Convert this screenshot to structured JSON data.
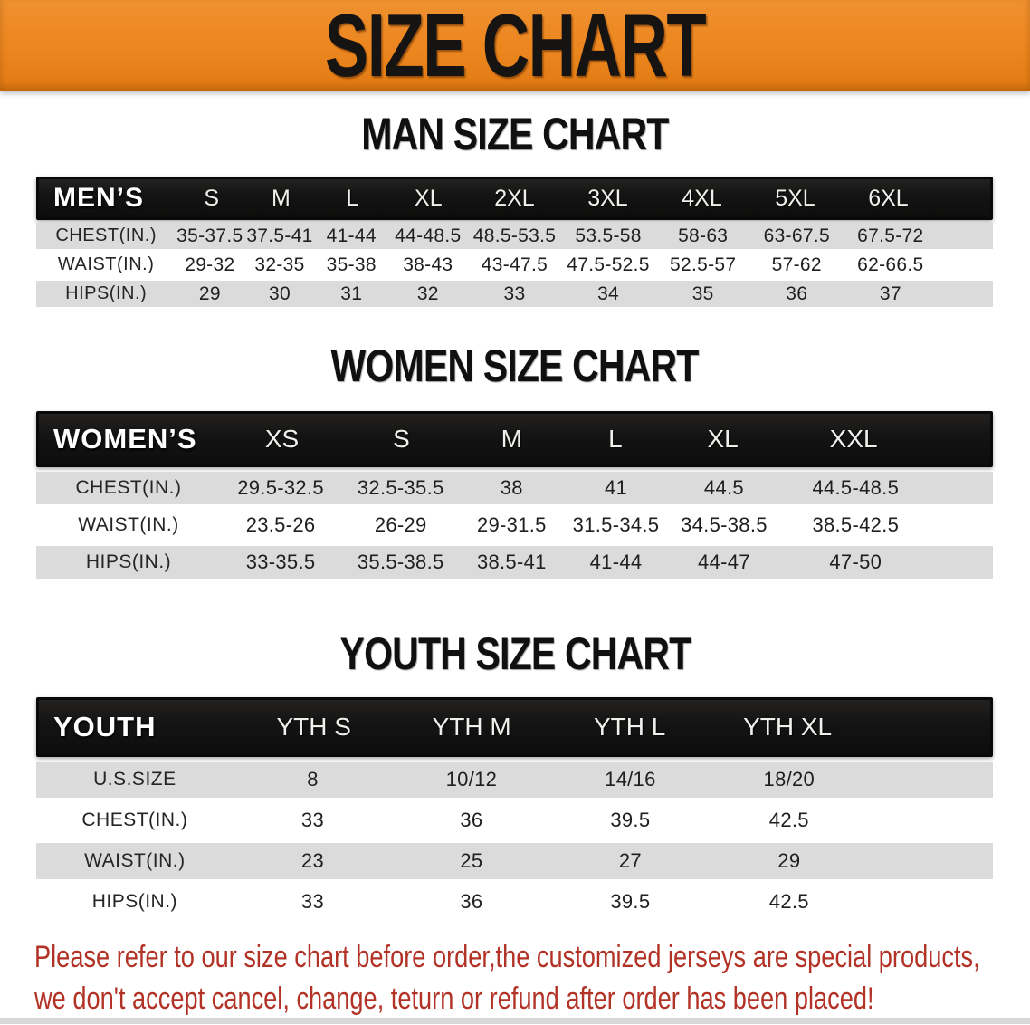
{
  "banner": {
    "title": "SIZE CHART"
  },
  "colors": {
    "banner_orange": "#EC861E",
    "table_header_black": "#141414",
    "row_gray": "#DBDBDB",
    "disclaimer_red": "#B23226"
  },
  "sections": {
    "men": {
      "heading": "MAN SIZE CHART",
      "table_label": "MEN’S",
      "sizes": [
        "S",
        "M",
        "L",
        "XL",
        "2XL",
        "3XL",
        "4XL",
        "5XL",
        "6XL"
      ],
      "rows": [
        {
          "label": "CHEST(IN.)",
          "values": [
            "35-37.5",
            "37.5-41",
            "41-44",
            "44-48.5",
            "48.5-53.5",
            "53.5-58",
            "58-63",
            "63-67.5",
            "67.5-72"
          ]
        },
        {
          "label": "WAIST(IN.)",
          "values": [
            "29-32",
            "32-35",
            "35-38",
            "38-43",
            "43-47.5",
            "47.5-52.5",
            "52.5-57",
            "57-62",
            "62-66.5"
          ]
        },
        {
          "label": "HIPS(IN.)",
          "values": [
            "29",
            "30",
            "31",
            "32",
            "33",
            "34",
            "35",
            "36",
            "37"
          ]
        }
      ]
    },
    "women": {
      "heading": "WOMEN SIZE CHART",
      "table_label": "WOMEN’S",
      "sizes": [
        "XS",
        "S",
        "M",
        "L",
        "XL",
        "XXL"
      ],
      "rows": [
        {
          "label": "CHEST(IN.)",
          "values": [
            "29.5-32.5",
            "32.5-35.5",
            "38",
            "41",
            "44.5",
            "44.5-48.5"
          ]
        },
        {
          "label": "WAIST(IN.)",
          "values": [
            "23.5-26",
            "26-29",
            "29-31.5",
            "31.5-34.5",
            "34.5-38.5",
            "38.5-42.5"
          ]
        },
        {
          "label": "HIPS(IN.)",
          "values": [
            "33-35.5",
            "35.5-38.5",
            "38.5-41",
            "41-44",
            "44-47",
            "47-50"
          ]
        }
      ]
    },
    "youth": {
      "heading": "YOUTH SIZE CHART",
      "table_label": "YOUTH",
      "sizes": [
        "YTH S",
        "YTH M",
        "YTH L",
        "YTH XL"
      ],
      "rows": [
        {
          "label": "U.S.SIZE",
          "values": [
            "8",
            "10/12",
            "14/16",
            "18/20"
          ]
        },
        {
          "label": "CHEST(IN.)",
          "values": [
            "33",
            "36",
            "39.5",
            "42.5"
          ]
        },
        {
          "label": "WAIST(IN.)",
          "values": [
            "23",
            "25",
            "27",
            "29"
          ]
        },
        {
          "label": "HIPS(IN.)",
          "values": [
            "33",
            "36",
            "39.5",
            "42.5"
          ]
        }
      ]
    }
  },
  "disclaimer": {
    "line1": "Please refer to our size chart before order,the customized jerseys are special products,",
    "line2": "we don't accept cancel, change, teturn or refund after order has been placed!"
  }
}
